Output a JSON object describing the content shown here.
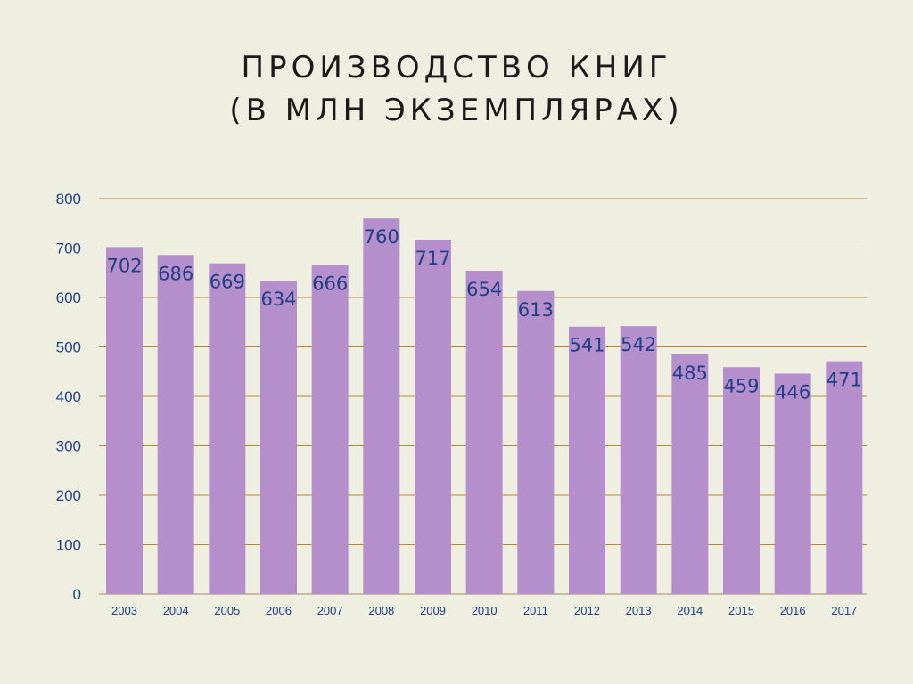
{
  "slide": {
    "title_line1": "ПРОИЗВОДСТВО КНИГ",
    "title_line2": "(В МЛН ЭКЗЕМПЛЯРАХ)"
  },
  "colors": {
    "background": "#EEEFE1",
    "bar": "#B48FCB",
    "gridline": "#B8862B",
    "label": "#1F3F86"
  },
  "chart_data": {
    "type": "bar",
    "title": "ПРОИЗВОДСТВО КНИГ (В МЛН ЭКЗЕМПЛЯРАХ)",
    "xlabel": "",
    "ylabel": "",
    "categories": [
      "2003",
      "2004",
      "2005",
      "2006",
      "2007",
      "2008",
      "2009",
      "2010",
      "2011",
      "2012",
      "2013",
      "2014",
      "2015",
      "2016",
      "2017"
    ],
    "values": [
      702,
      686,
      669,
      634,
      666,
      760,
      717,
      654,
      613,
      541,
      542,
      485,
      459,
      446,
      471
    ],
    "ylim": [
      0,
      800
    ],
    "yticks": [
      0,
      100,
      200,
      300,
      400,
      500,
      600,
      700,
      800
    ],
    "grid": true,
    "legend": "none",
    "data_labels": true
  }
}
